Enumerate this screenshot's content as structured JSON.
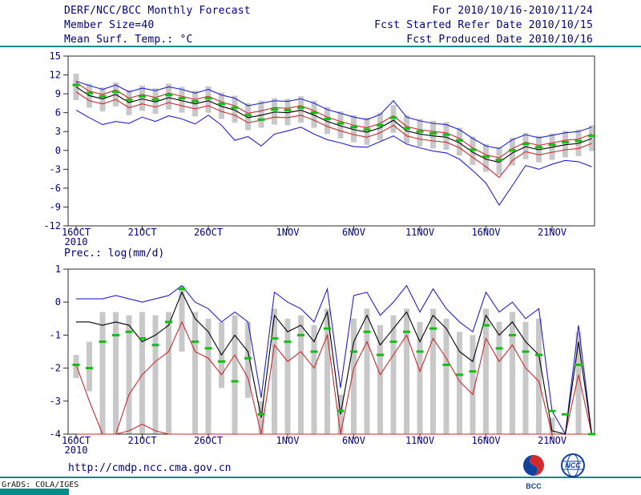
{
  "header": {
    "title": "DERF/NCC/BCC Monthly Forecast",
    "member_size": "Member Size=40",
    "for_range": "For 2010/10/16-2010/11/24",
    "fcst_started": "Fcst Started Refer Date 2010/10/15",
    "fcst_produced": "Fcst Produced Date 2010/10/16"
  },
  "footer": {
    "url": "http://cmdp.ncc.cma.gov.cn",
    "grads_credit": "GrADS: COLA/IGES",
    "logos": [
      {
        "icon": "bcc-logo",
        "label": "BCC"
      },
      {
        "icon": "ncc-logo",
        "label": "NCC"
      }
    ]
  },
  "colors": {
    "text_navy": "#000082",
    "teal_rule": "#008b8b",
    "frame": "#2a2a2a",
    "bar_gray": "#c8c8c8",
    "green_mark": "#10c010",
    "blue_line": "#2222cc",
    "red_line": "#cc2a2a",
    "black_line": "#000000"
  },
  "chart_data": [
    {
      "type": "line",
      "title": "Mean Surf. Temp.: °C",
      "ylim": [
        -12,
        15
      ],
      "yticks": [
        15,
        12,
        9,
        6,
        3,
        0,
        -3,
        -6,
        -9,
        -12
      ],
      "xticks": [
        {
          "i": 0,
          "label": "16OCT",
          "sub": "2010"
        },
        {
          "i": 5,
          "label": "21OCT"
        },
        {
          "i": 10,
          "label": "26OCT"
        },
        {
          "i": 16,
          "label": "1NOV"
        },
        {
          "i": 21,
          "label": "6NOV"
        },
        {
          "i": 26,
          "label": "11NOV"
        },
        {
          "i": 31,
          "label": "16NOV"
        },
        {
          "i": 36,
          "label": "21NOV"
        }
      ],
      "n_days": 40,
      "bars": {
        "color": "#c8c8c8",
        "low": [
          8.0,
          6.8,
          6.2,
          7.0,
          5.6,
          6.3,
          5.8,
          6.5,
          6.0,
          5.4,
          6.0,
          5.0,
          4.4,
          3.2,
          3.6,
          4.1,
          4.0,
          4.4,
          3.6,
          2.6,
          1.9,
          1.3,
          0.9,
          1.6,
          2.8,
          1.1,
          0.6,
          0.3,
          0.1,
          -0.8,
          -2.3,
          -3.4,
          -3.9,
          -2.4,
          -1.4,
          -1.9,
          -1.5,
          -1.1,
          -0.9,
          -0.1
        ],
        "high": [
          12.2,
          10.6,
          10.0,
          10.8,
          9.6,
          10.3,
          9.9,
          10.6,
          10.1,
          9.5,
          10.2,
          9.2,
          8.7,
          7.5,
          7.9,
          8.3,
          8.2,
          8.6,
          7.9,
          6.9,
          6.2,
          5.6,
          5.2,
          6.0,
          7.2,
          5.6,
          5.0,
          4.7,
          4.5,
          3.6,
          2.2,
          1.0,
          0.5,
          2.0,
          2.8,
          2.3,
          2.7,
          3.1,
          3.3,
          4.0
        ]
      },
      "series": [
        {
          "name": "ensemble-max",
          "color": "#2222cc",
          "values": [
            11.0,
            10.3,
            9.7,
            10.4,
            9.3,
            9.9,
            9.5,
            10.1,
            9.7,
            9.1,
            9.7,
            8.8,
            8.3,
            7.1,
            7.5,
            7.9,
            7.8,
            8.2,
            7.5,
            6.5,
            5.9,
            5.3,
            4.9,
            5.7,
            7.9,
            5.3,
            4.7,
            4.3,
            4.1,
            3.3,
            1.9,
            0.7,
            0.3,
            1.7,
            2.5,
            2.0,
            2.4,
            2.8,
            3.0,
            3.7
          ]
        },
        {
          "name": "ensemble-min",
          "color": "#2222cc",
          "values": [
            6.4,
            5.2,
            4.1,
            4.6,
            4.3,
            5.3,
            4.6,
            5.5,
            5.0,
            4.2,
            5.6,
            4.0,
            1.6,
            2.2,
            0.7,
            2.6,
            3.1,
            3.7,
            2.6,
            1.7,
            1.2,
            0.6,
            0.5,
            1.4,
            2.3,
            1.0,
            0.4,
            -0.1,
            -0.4,
            -1.4,
            -3.2,
            -5.2,
            -8.7,
            -5.6,
            -2.4,
            -3.0,
            -2.2,
            -1.6,
            -1.8,
            -2.6
          ]
        },
        {
          "name": "upper-quartile",
          "color": "#cc2a2a",
          "values": [
            10.8,
            9.4,
            8.9,
            9.6,
            8.3,
            8.9,
            8.4,
            9.1,
            8.6,
            8.1,
            8.6,
            7.7,
            7.1,
            5.9,
            6.3,
            6.8,
            6.7,
            7.1,
            6.3,
            5.3,
            4.6,
            4.0,
            3.6,
            4.3,
            5.5,
            3.8,
            3.3,
            3.0,
            2.8,
            1.9,
            0.4,
            -0.7,
            -1.2,
            0.3,
            1.3,
            0.8,
            1.2,
            1.6,
            1.8,
            2.6
          ]
        },
        {
          "name": "lower-quartile",
          "color": "#cc2a2a",
          "values": [
            9.3,
            7.9,
            7.4,
            8.1,
            6.8,
            7.4,
            6.9,
            7.6,
            7.1,
            6.6,
            7.1,
            6.2,
            5.6,
            4.4,
            4.8,
            5.3,
            5.2,
            5.6,
            4.8,
            3.8,
            3.1,
            2.5,
            2.1,
            2.8,
            4.0,
            2.3,
            1.8,
            1.5,
            1.3,
            0.4,
            -1.1,
            -2.6,
            -4.3,
            -1.6,
            -0.2,
            -0.7,
            -0.3,
            0.1,
            0.3,
            1.1
          ]
        },
        {
          "name": "ensemble-mean",
          "color": "#000000",
          "values": [
            10.1,
            8.7,
            8.2,
            8.9,
            7.6,
            8.2,
            7.7,
            8.4,
            7.9,
            7.4,
            7.9,
            7.0,
            6.4,
            5.2,
            5.6,
            6.1,
            6.0,
            6.4,
            5.6,
            4.6,
            3.9,
            3.3,
            2.9,
            3.6,
            4.8,
            3.1,
            2.6,
            2.3,
            2.1,
            1.2,
            -0.3,
            -1.4,
            -1.9,
            -0.4,
            0.6,
            0.1,
            0.5,
            0.9,
            1.1,
            1.9
          ]
        }
      ],
      "median_marks": {
        "color": "#10c010",
        "values": [
          10.4,
          9.1,
          8.6,
          9.3,
          8.0,
          8.6,
          8.1,
          8.8,
          8.3,
          7.8,
          8.3,
          7.4,
          6.8,
          5.6,
          4.9,
          6.5,
          6.4,
          6.8,
          6.0,
          5.0,
          4.3,
          3.7,
          3.3,
          4.0,
          5.2,
          3.5,
          3.0,
          2.7,
          2.5,
          1.6,
          0.1,
          -1.0,
          -1.5,
          0.0,
          1.0,
          0.5,
          0.9,
          1.3,
          1.5,
          2.3
        ]
      }
    },
    {
      "type": "line",
      "title": "Prec.: log(mm/d)",
      "ylim": [
        -4,
        1
      ],
      "yticks": [
        1,
        0,
        -1,
        -2,
        -3,
        -4
      ],
      "xticks": [
        {
          "i": 0,
          "label": "16OCT",
          "sub": "2010"
        },
        {
          "i": 5,
          "label": "21OCT"
        },
        {
          "i": 10,
          "label": "26OCT"
        },
        {
          "i": 16,
          "label": "1NOV"
        },
        {
          "i": 21,
          "label": "6NOV"
        },
        {
          "i": 26,
          "label": "11NOV"
        },
        {
          "i": 31,
          "label": "16NOV"
        },
        {
          "i": 36,
          "label": "21NOV"
        }
      ],
      "n_days": 40,
      "bars": {
        "color": "#c8c8c8",
        "low": [
          -2.3,
          -2.7,
          -4,
          -4,
          -4,
          -4,
          -4,
          -4,
          -1.5,
          -4,
          -4,
          -2.6,
          -4,
          -2.9,
          -4,
          -4,
          -4,
          -4,
          -4,
          -4,
          -4,
          -4,
          -4,
          -4,
          -4,
          -4,
          -4,
          -4,
          -4,
          -4,
          -4,
          -4,
          -4,
          -4,
          -4,
          -4,
          -4,
          -4,
          -4,
          -4
        ],
        "high": [
          -1.6,
          -1.2,
          -0.3,
          -0.3,
          -0.4,
          -0.3,
          -0.4,
          -0.3,
          0.5,
          -0.3,
          -0.5,
          -0.6,
          -0.4,
          -0.6,
          -3.0,
          -0.2,
          -0.5,
          -0.4,
          -0.7,
          -0.2,
          -2.8,
          -0.5,
          -0.2,
          -0.7,
          -0.4,
          -0.2,
          -0.6,
          -0.2,
          -0.5,
          -0.9,
          -1.0,
          -0.2,
          -0.6,
          -0.3,
          -0.6,
          -0.5,
          -3.5,
          -4.0,
          -0.9,
          -4.0
        ]
      },
      "series": [
        {
          "name": "ensemble-max",
          "color": "#2222cc",
          "values": [
            0.1,
            0.1,
            0.1,
            0.2,
            0.1,
            0.0,
            0.1,
            0.2,
            0.5,
            0.0,
            -0.2,
            -0.6,
            -0.3,
            -0.6,
            -2.9,
            0.3,
            0.0,
            -0.2,
            -0.6,
            0.4,
            -2.6,
            0.2,
            0.3,
            -0.4,
            0.0,
            0.5,
            -0.3,
            0.4,
            -0.2,
            -0.6,
            -0.9,
            0.3,
            -0.3,
            0.0,
            -0.5,
            -0.2,
            -3.3,
            -4.0,
            -0.7,
            -4.0
          ]
        },
        {
          "name": "lower-quartile",
          "color": "#cc2a2a",
          "values": [
            -1.9,
            -3.0,
            -4.0,
            -4.0,
            -2.8,
            -2.2,
            -1.8,
            -1.5,
            -0.6,
            -1.5,
            -1.7,
            -2.2,
            -1.6,
            -2.3,
            -4.0,
            -1.3,
            -1.8,
            -1.5,
            -2.0,
            -1.0,
            -4.0,
            -2.0,
            -1.2,
            -2.2,
            -1.6,
            -1.0,
            -2.1,
            -1.1,
            -1.7,
            -2.4,
            -2.8,
            -1.1,
            -1.8,
            -1.3,
            -2.0,
            -2.4,
            -4.0,
            -4.0,
            -2.2,
            -4.0
          ]
        },
        {
          "name": "ensemble-min",
          "color": "#cc2a2a",
          "values": [
            -4,
            -4,
            -4,
            -4,
            -3.9,
            -3.7,
            -3.9,
            -4,
            -4,
            -4,
            -4,
            -4,
            -4,
            -4,
            -4,
            -4,
            -4,
            -4,
            -4,
            -4,
            -4,
            -4,
            -4,
            -4,
            -4,
            -4,
            -4,
            -4,
            -4,
            -4,
            -4,
            -4,
            -4,
            -4,
            -4,
            -4,
            -4,
            -4,
            -4,
            -4
          ]
        },
        {
          "name": "ensemble-mean",
          "color": "#000000",
          "values": [
            -0.6,
            -0.6,
            -0.7,
            -0.6,
            -0.7,
            -1.2,
            -1.0,
            -0.7,
            0.3,
            -0.5,
            -0.9,
            -1.6,
            -1.0,
            -1.5,
            -3.5,
            -0.4,
            -0.9,
            -0.7,
            -1.2,
            -0.3,
            -3.4,
            -1.2,
            -0.4,
            -1.3,
            -0.8,
            -0.3,
            -1.2,
            -0.4,
            -0.8,
            -1.5,
            -1.8,
            -0.4,
            -1.0,
            -0.6,
            -1.2,
            -1.6,
            -3.9,
            -4.0,
            -1.2,
            -4.0
          ]
        }
      ],
      "median_marks": {
        "color": "#10c010",
        "values": [
          -1.9,
          -2.0,
          -1.2,
          -1.0,
          -0.9,
          -1.1,
          -1.3,
          -0.6,
          0.4,
          -1.2,
          -1.4,
          -1.8,
          -2.4,
          -1.7,
          -3.4,
          -1.1,
          -1.2,
          -1.0,
          -1.5,
          -0.8,
          -3.3,
          -1.5,
          -0.9,
          -1.6,
          -1.2,
          -0.9,
          -1.5,
          -0.8,
          -1.9,
          -2.2,
          -2.1,
          -0.7,
          -1.4,
          -1.0,
          -1.5,
          -1.6,
          -3.3,
          -3.4,
          -1.9,
          -4.0
        ]
      }
    }
  ]
}
